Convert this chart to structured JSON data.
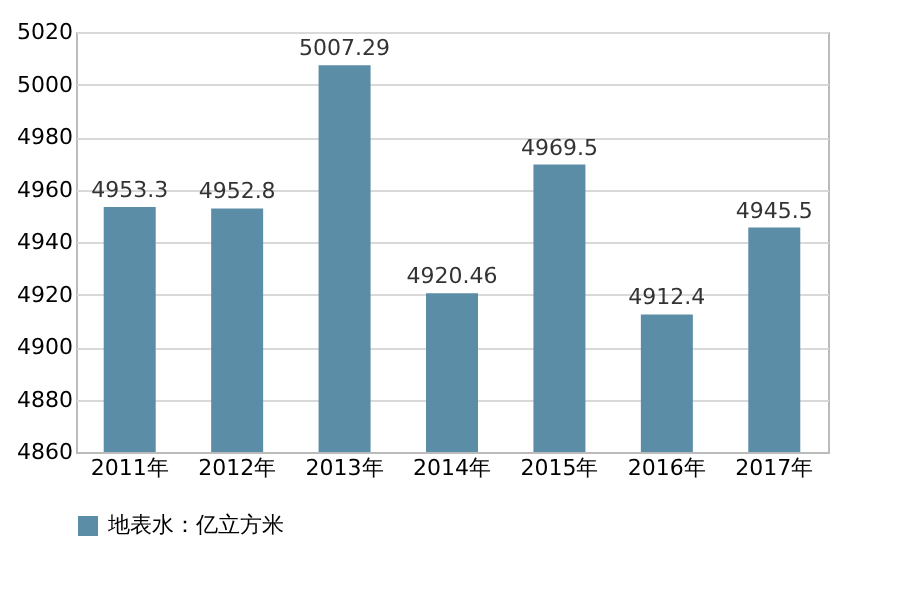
{
  "chart_data": {
    "type": "bar",
    "categories": [
      "2011年",
      "2012年",
      "2013年",
      "2014年",
      "2015年",
      "2016年",
      "2017年"
    ],
    "series": [
      {
        "name": "地表水：亿立方米",
        "color": "#5b8da6",
        "values": [
          4953.3,
          4952.8,
          5007.29,
          4920.46,
          4969.5,
          4912.4,
          4945.5
        ]
      }
    ],
    "ylim": [
      4860,
      5020
    ],
    "yticks": [
      4860,
      4880,
      4900,
      4920,
      4940,
      4960,
      4980,
      5000,
      5020
    ],
    "grid": "y",
    "legend": "bottom",
    "data_labels": true
  }
}
